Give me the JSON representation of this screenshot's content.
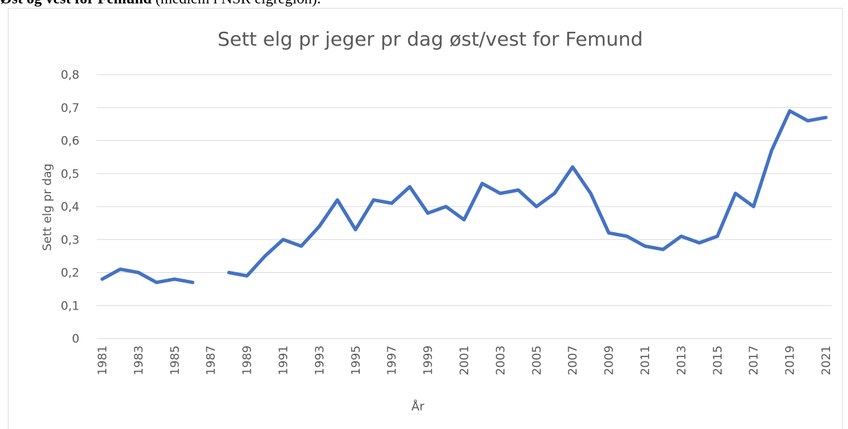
{
  "heading": {
    "bold": "Øst og vest for Femund",
    "rest": " (medlem i NSR elgregion)."
  },
  "chart_data": {
    "type": "line",
    "title": "Sett elg pr jeger pr dag øst/vest for Femund",
    "y_label": "Sett elg pr dag",
    "x_label": "År",
    "categories": [
      "1981",
      null,
      "1983",
      null,
      "1985",
      null,
      "1987",
      null,
      "1989",
      null,
      "1991",
      null,
      "1993",
      null,
      "1995",
      null,
      "1997",
      null,
      "1999",
      null,
      "2001",
      null,
      "2003",
      null,
      "2005",
      null,
      "2007",
      null,
      "2009",
      null,
      "2011",
      null,
      "2013",
      null,
      "2015",
      null,
      "2017",
      null,
      "2019",
      null,
      "2021"
    ],
    "series": [
      {
        "name": "Sett elg pr dag",
        "color": "#4472c4",
        "values": [
          0.18,
          0.21,
          0.2,
          0.17,
          0.18,
          0.17,
          null,
          0.2,
          0.19,
          0.25,
          0.3,
          0.28,
          0.34,
          0.42,
          0.33,
          0.42,
          0.41,
          0.46,
          0.38,
          0.4,
          0.36,
          0.47,
          0.44,
          0.45,
          0.4,
          0.44,
          0.52,
          0.44,
          0.32,
          0.31,
          0.28,
          0.27,
          0.31,
          0.29,
          0.31,
          0.44,
          0.4,
          0.57,
          0.69,
          0.66,
          0.67
        ]
      }
    ],
    "ylim": [
      0,
      0.8
    ],
    "yticks": [
      0,
      {
        "value": 0.1,
        "label": "0,1"
      },
      {
        "value": 0.2,
        "label": "0,2"
      },
      {
        "value": 0.3,
        "label": "0,3"
      },
      {
        "value": 0.4,
        "label": "0,4"
      },
      {
        "value": 0.5,
        "label": "0,5"
      },
      {
        "value": 0.6,
        "label": "0,6"
      },
      {
        "value": 0.7,
        "label": "0,7"
      },
      {
        "value": 0.8,
        "label": "0,8"
      }
    ],
    "grid": true
  }
}
